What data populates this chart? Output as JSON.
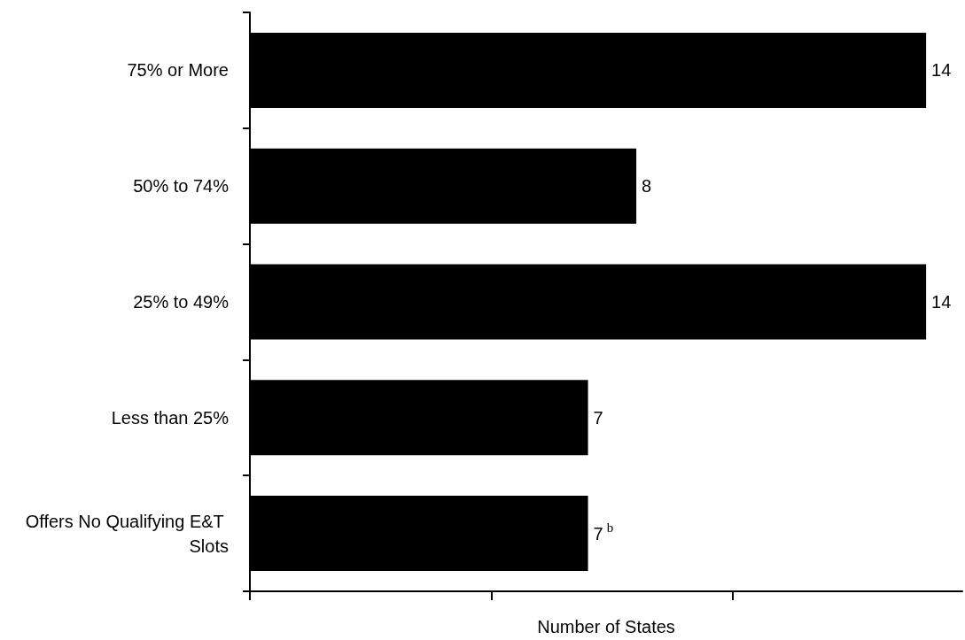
{
  "chart_data": {
    "type": "bar",
    "orientation": "horizontal",
    "xlabel": "Number of States",
    "categories": [
      "75% or More",
      "50% to 74%",
      "25% to 49%",
      "Less than 25%",
      "Offers No Qualifying E&T Slots"
    ],
    "values": [
      14,
      8,
      14,
      7,
      7
    ],
    "color": "#000000",
    "value_labels": [
      "14",
      "8",
      "14",
      "7",
      "7$^{b}$"
    ],
    "xlim": [
      0,
      14.75
    ],
    "xticks": [
      {
        "value": 0,
        "label": null
      },
      {
        "value": 5,
        "label": null
      },
      {
        "value": 10,
        "label": null
      }
    ],
    "tick_labels": "y",
    "grid": false
  }
}
